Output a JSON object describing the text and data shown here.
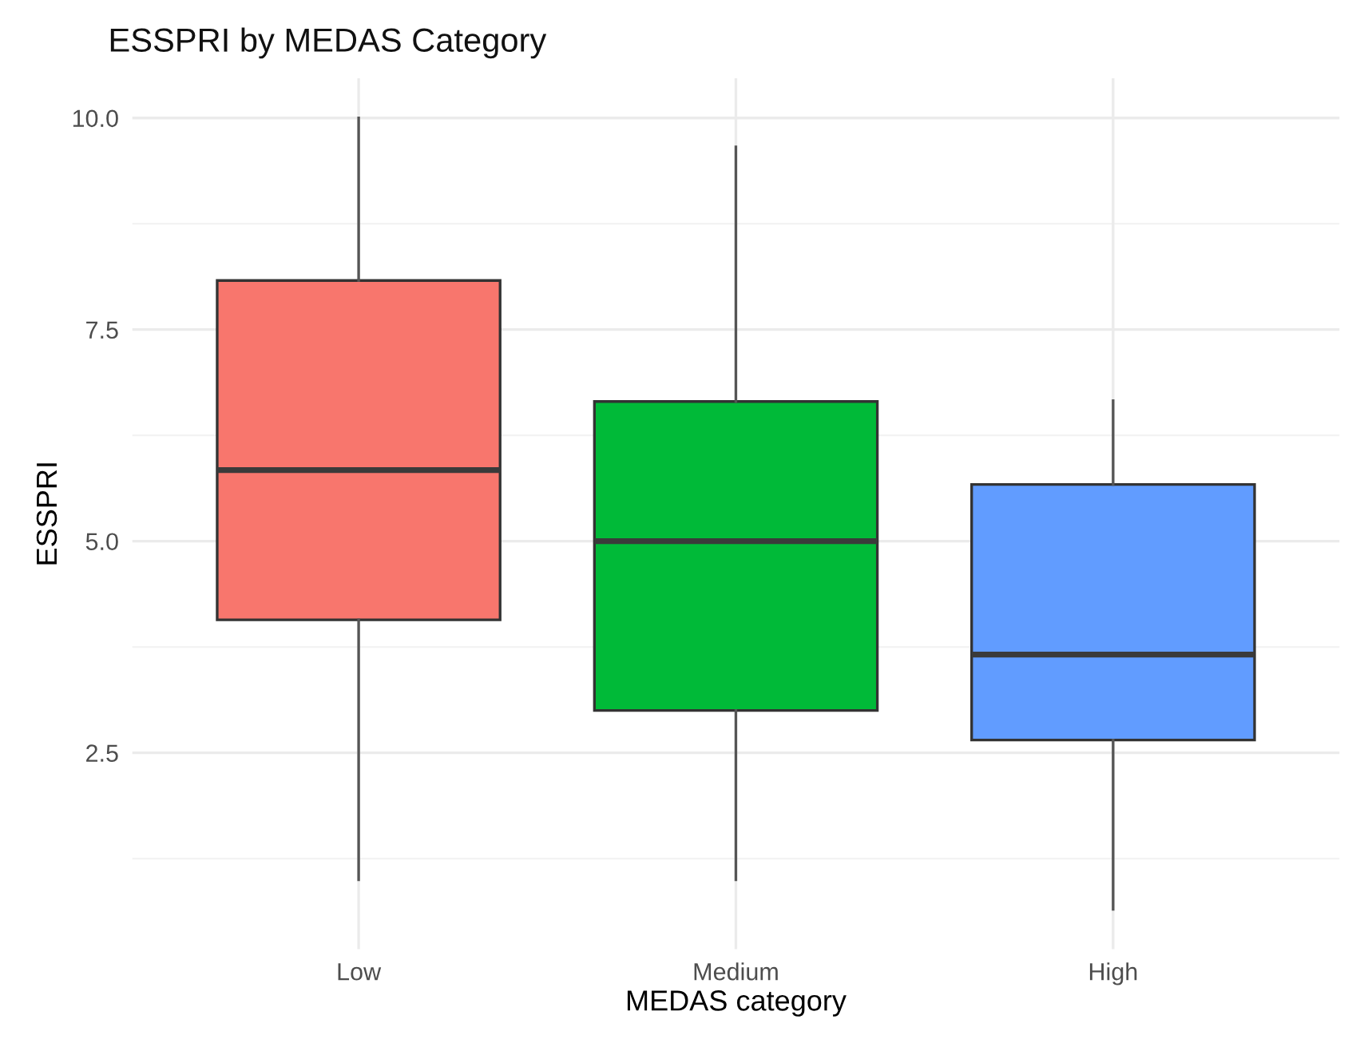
{
  "chart_data": {
    "type": "box",
    "title": "ESSPRI by MEDAS Category",
    "xlabel": "MEDAS category",
    "ylabel": "ESSPRI",
    "categories": [
      "Low",
      "Medium",
      "High"
    ],
    "colors": [
      "#f8766d",
      "#00ba38",
      "#619cff"
    ],
    "boxes": [
      {
        "low": 1.0,
        "q1": 4.07,
        "median": 5.84,
        "q3": 8.08,
        "high": 10.0
      },
      {
        "low": 1.0,
        "q1": 3.0,
        "median": 5.0,
        "q3": 6.65,
        "high": 9.66
      },
      {
        "low": 0.65,
        "q1": 2.65,
        "median": 3.66,
        "q3": 5.67,
        "high": 6.66
      }
    ],
    "ylim": [
      0.18,
      10.47
    ],
    "yticks": [
      {
        "value": 2.5,
        "label": "2.5"
      },
      {
        "value": 5,
        "label": "5.0"
      },
      {
        "value": 7.5,
        "label": "7.5"
      },
      {
        "value": 10,
        "label": "10.0"
      }
    ],
    "grid": true
  }
}
